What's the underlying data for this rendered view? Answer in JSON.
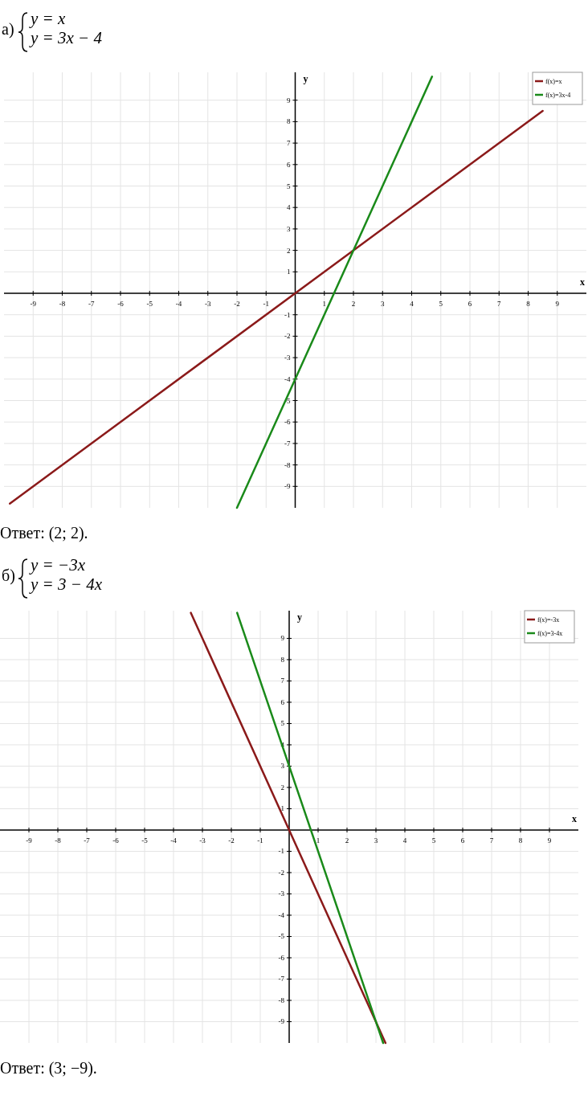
{
  "chart_data": [
    {
      "type": "line",
      "title": "а)",
      "xlabel": "x",
      "ylabel": "y",
      "xlim": [
        -10,
        10
      ],
      "ylim": [
        -10,
        10.3
      ],
      "xticks": [
        -9,
        -8,
        -7,
        -6,
        -5,
        -4,
        -3,
        -2,
        -1,
        1,
        2,
        3,
        4,
        5,
        6,
        7,
        8,
        9
      ],
      "yticks": [
        -9,
        -8,
        -7,
        -6,
        -5,
        -4,
        -3,
        -2,
        -1,
        1,
        2,
        3,
        4,
        5,
        6,
        7,
        8,
        9
      ],
      "grid": true,
      "legend": "top right",
      "series": [
        {
          "name": "f(x)=x",
          "color": "#8b1a1a",
          "x": [
            -9.8,
            8.5
          ],
          "values": [
            -9.8,
            8.5
          ]
        },
        {
          "name": "f(x)=3x-4",
          "color": "#1a8a1a",
          "x": [
            -2,
            4.7
          ],
          "values": [
            -10,
            10.1
          ]
        }
      ],
      "annotations": [
        "y = x",
        "y = 3x − 4",
        "Ответ: (2; 2)."
      ]
    },
    {
      "type": "line",
      "title": "б)",
      "xlabel": "x",
      "ylabel": "y",
      "xlim": [
        -10,
        10
      ],
      "ylim": [
        -10,
        10.3
      ],
      "xticks": [
        -9,
        -8,
        -7,
        -6,
        -5,
        -4,
        -3,
        -2,
        -1,
        1,
        2,
        3,
        4,
        5,
        6,
        7,
        8,
        9
      ],
      "yticks": [
        -9,
        -8,
        -7,
        -6,
        -5,
        -4,
        -3,
        -2,
        -1,
        1,
        2,
        3,
        4,
        5,
        6,
        7,
        8,
        9
      ],
      "grid": true,
      "legend": "top right",
      "series": [
        {
          "name": "f(x)=-3x",
          "color": "#8b1a1a",
          "x": [
            -3.4,
            3.33
          ],
          "values": [
            10.2,
            -10
          ]
        },
        {
          "name": "f(x)=3-4x",
          "color": "#1a8a1a",
          "x": [
            -1.8,
            3.25
          ],
          "values": [
            10.2,
            -10
          ]
        }
      ],
      "annotations": [
        "y = −3x",
        "y = 3 − 4x",
        "Ответ: (3;  −9)."
      ]
    }
  ]
}
